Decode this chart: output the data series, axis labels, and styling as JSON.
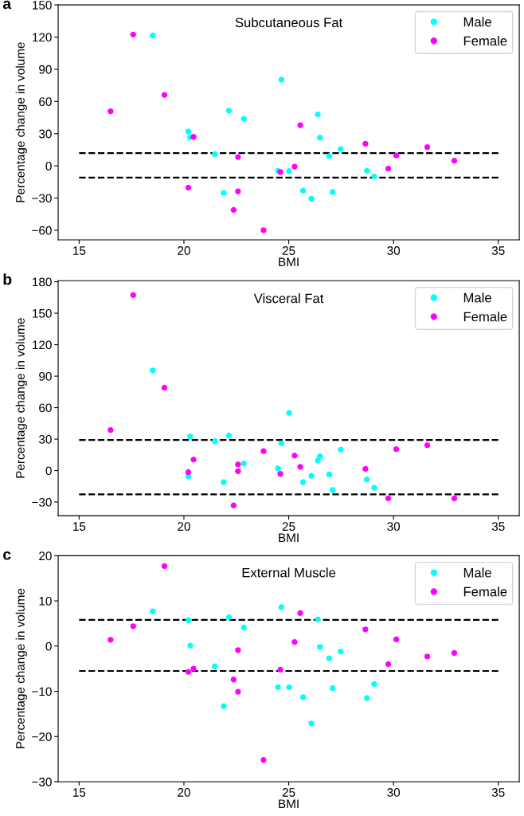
{
  "chart_data": [
    {
      "type": "scatter",
      "title": "Subcutaneous Fat",
      "xlabel": "BMI",
      "ylabel": "Percentage change in volume",
      "annotations": [
        "a"
      ],
      "xlim": [
        14,
        36
      ],
      "xticks": [
        15,
        20,
        25,
        30,
        35
      ],
      "ylim": [
        -69,
        150
      ],
      "yticks": [
        -60,
        -30,
        0,
        30,
        60,
        90,
        120,
        150
      ],
      "legend": "top right",
      "grid": false,
      "marker": "circle",
      "ref_lines": [
        {
          "axis": "y",
          "value": 11.9,
          "color": "#000000",
          "line_style": "dashed"
        },
        {
          "axis": "y",
          "value": -11.0,
          "color": "#000000",
          "line_style": "dashed"
        }
      ],
      "series": [
        {
          "name": "Male",
          "color": "#00ffff",
          "x": [
            18.51,
            20.21,
            20.3,
            21.47,
            21.9,
            22.15,
            22.86,
            24.49,
            24.65,
            25.02,
            25.68,
            26.08,
            26.39,
            26.49,
            26.93,
            27.09,
            27.48,
            28.73,
            29.08
          ],
          "values": [
            121.5,
            32,
            26.7,
            10.9,
            -25.3,
            51.5,
            43.8,
            -4.6,
            80.3,
            -4.9,
            -23.1,
            -30.6,
            47.8,
            26.4,
            9.1,
            -24.4,
            15.6,
            -4.6,
            -9.8
          ]
        },
        {
          "name": "Female",
          "color": "#ff00ff",
          "x": [
            16.5,
            17.58,
            19.07,
            20.21,
            20.46,
            22.37,
            22.58,
            22.58,
            23.8,
            24.6,
            25.28,
            25.55,
            28.66,
            29.75,
            30.13,
            31.61,
            32.9
          ],
          "values": [
            50.9,
            122.4,
            66.1,
            -20.3,
            27,
            -41.1,
            8.2,
            -23.7,
            -60,
            -5.8,
            -0.8,
            37.9,
            20.6,
            -2.6,
            9.7,
            17.5,
            4.8
          ]
        }
      ]
    },
    {
      "type": "scatter",
      "title": "Visceral Fat",
      "xlabel": "BMI",
      "ylabel": "Percentage change in volume",
      "annotations": [
        "b"
      ],
      "xlim": [
        14,
        36
      ],
      "xticks": [
        15,
        20,
        25,
        30,
        35
      ],
      "ylim": [
        -43,
        181
      ],
      "yticks": [
        -30,
        0,
        30,
        60,
        90,
        120,
        150,
        180
      ],
      "legend": "top right",
      "grid": false,
      "marker": "circle",
      "ref_lines": [
        {
          "axis": "y",
          "value": 29.2,
          "color": "#000000",
          "line_style": "dashed"
        },
        {
          "axis": "y",
          "value": -22.7,
          "color": "#000000",
          "line_style": "dashed"
        }
      ],
      "series": [
        {
          "name": "Male",
          "color": "#00ffff",
          "x": [
            18.51,
            20.21,
            20.3,
            21.47,
            21.9,
            22.15,
            22.86,
            24.49,
            24.65,
            25.02,
            25.68,
            26.08,
            26.39,
            26.49,
            26.93,
            27.09,
            27.48,
            28.73,
            29.08
          ],
          "values": [
            95.4,
            -5.6,
            32.4,
            28,
            -11,
            33.3,
            6.7,
            2,
            26,
            54.9,
            -11,
            -5,
            9.6,
            13.7,
            -3.7,
            -18.6,
            20,
            -8.5,
            -16.4
          ]
        },
        {
          "name": "Female",
          "color": "#ff00ff",
          "x": [
            16.5,
            17.58,
            19.07,
            20.21,
            20.46,
            22.37,
            22.58,
            22.58,
            23.8,
            24.6,
            25.28,
            25.55,
            28.66,
            29.75,
            30.13,
            31.61,
            32.9
          ],
          "values": [
            38.7,
            167.3,
            79,
            -1.5,
            10.5,
            -33.2,
            5.8,
            -0.6,
            18.5,
            -3.1,
            14.3,
            3.6,
            1.7,
            -26.5,
            20.4,
            24.2,
            -26.5
          ]
        }
      ]
    },
    {
      "type": "scatter",
      "title": "External Muscle",
      "xlabel": "BMI",
      "ylabel": "Percentage change in volume",
      "annotations": [
        "c"
      ],
      "xlim": [
        14,
        36
      ],
      "xticks": [
        15,
        20,
        25,
        30,
        35
      ],
      "ylim": [
        -30,
        20
      ],
      "yticks": [
        -30,
        -20,
        -10,
        0,
        10,
        20
      ],
      "legend": "top right",
      "grid": false,
      "marker": "circle",
      "ref_lines": [
        {
          "axis": "y",
          "value": 5.8,
          "color": "#000000",
          "line_style": "dashed"
        },
        {
          "axis": "y",
          "value": -5.5,
          "color": "#000000",
          "line_style": "dashed"
        }
      ],
      "series": [
        {
          "name": "Male",
          "color": "#00ffff",
          "x": [
            18.51,
            20.21,
            20.3,
            21.47,
            21.9,
            22.15,
            22.86,
            24.49,
            24.65,
            25.02,
            25.68,
            26.08,
            26.39,
            26.49,
            26.93,
            27.09,
            27.48,
            28.73,
            29.08
          ],
          "values": [
            7.7,
            5.7,
            0.1,
            -4.5,
            -13.3,
            6.4,
            4.1,
            -9.1,
            8.6,
            -9.1,
            -11.3,
            -17.1,
            5.9,
            -0.2,
            -2.7,
            -9.3,
            -1.2,
            -11.5,
            -8.4
          ]
        },
        {
          "name": "Female",
          "color": "#ff00ff",
          "x": [
            16.5,
            17.58,
            19.07,
            20.21,
            20.46,
            22.37,
            22.58,
            22.58,
            23.8,
            24.6,
            25.28,
            25.55,
            28.66,
            29.75,
            30.13,
            31.61,
            32.9
          ],
          "values": [
            1.4,
            4.4,
            17.7,
            -5.7,
            -5,
            -7.4,
            -0.9,
            -10.1,
            -25.2,
            -5.2,
            0.9,
            7.3,
            3.7,
            -4,
            1.5,
            -2.3,
            -1.5
          ]
        }
      ]
    }
  ]
}
